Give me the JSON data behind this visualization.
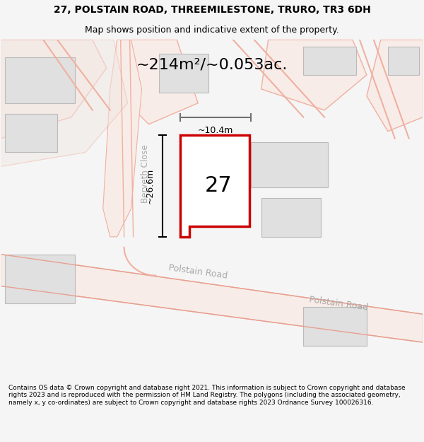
{
  "title_line1": "27, POLSTAIN ROAD, THREEMILESTONE, TRURO, TR3 6DH",
  "title_line2": "Map shows position and indicative extent of the property.",
  "area_text": "~214m²/~0.053ac.",
  "number_label": "27",
  "dim_height": "~26.6m",
  "dim_width": "~10.4m",
  "road_label1": "Berveth Close",
  "road_label2": "Polstain Road",
  "road_label3": "Polstain Road",
  "footer_text": "Contains OS data © Crown copyright and database right 2021. This information is subject to Crown copyright and database rights 2023 and is reproduced with the permission of HM Land Registry. The polygons (including the associated geometry, namely x, y co-ordinates) are subject to Crown copyright and database rights 2023 Ordnance Survey 100026316.",
  "bg_color": "#f5f5f5",
  "map_bg": "#ffffff",
  "road_color": "#f0b0a0",
  "road_color2": "#e8a090",
  "building_color": "#e0e0e0",
  "plot_color": "#ffffff",
  "plot_edge_color": "#cc0000",
  "dim_line_color": "#000000",
  "dim_line_color2": "#808080"
}
